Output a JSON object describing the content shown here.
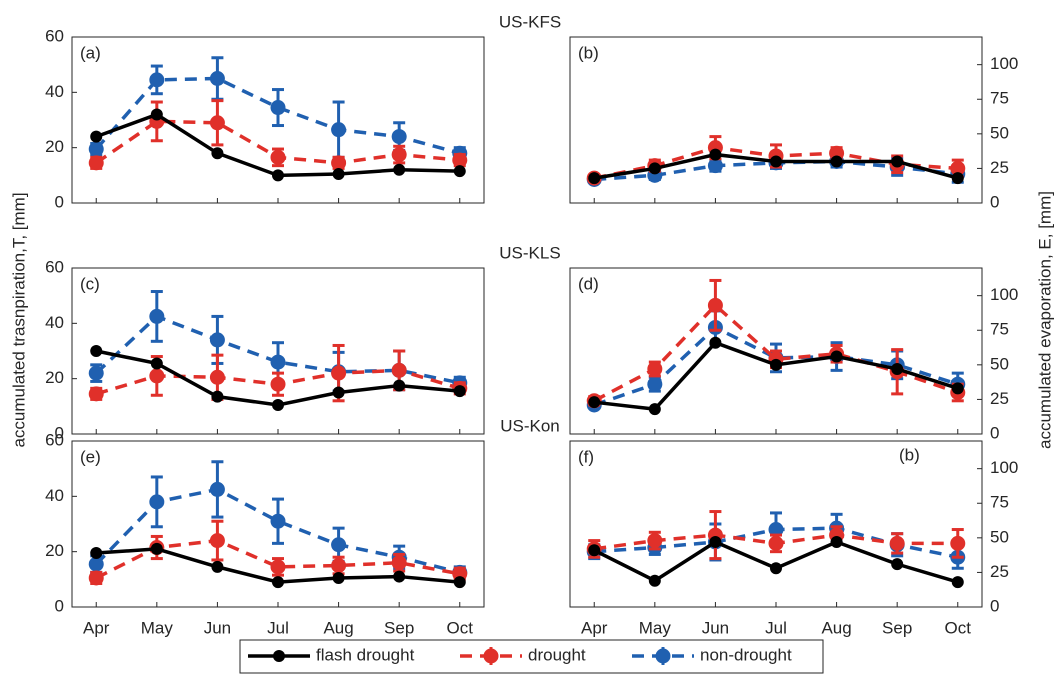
{
  "chart_data": [
    {
      "type": "line",
      "title": "US-KFS",
      "panel": "(a)",
      "axis_side": "left",
      "ylim": [
        0,
        60
      ],
      "yticks": [
        0,
        20,
        40,
        60
      ],
      "series": [
        {
          "name": "flash drought",
          "color": "#000000",
          "line_style": "solid",
          "values": [
            24,
            32,
            18,
            10,
            10.5,
            12,
            11.5
          ]
        },
        {
          "name": "drought",
          "color": "#e0302a",
          "line_style": "dashed",
          "values": [
            14.5,
            29.5,
            29,
            16.5,
            14.5,
            17.5,
            15.5
          ],
          "errors": [
            2,
            7,
            8,
            3,
            2,
            3,
            2
          ]
        },
        {
          "name": "non-drought",
          "color": "#2060b0",
          "line_style": "dashed",
          "values": [
            19.5,
            44.5,
            45,
            34.5,
            26.5,
            24,
            18
          ],
          "errors": [
            2,
            5,
            7.5,
            6.5,
            10,
            5,
            2
          ]
        }
      ]
    },
    {
      "type": "line",
      "panel": "(b)",
      "axis_side": "right",
      "ylim": [
        0,
        120
      ],
      "yticks": [
        0,
        25,
        50,
        75,
        100
      ],
      "series": [
        {
          "name": "flash drought",
          "color": "#000000",
          "line_style": "solid",
          "values": [
            18,
            25,
            35,
            30,
            30,
            30,
            18
          ]
        },
        {
          "name": "drought",
          "color": "#e0302a",
          "line_style": "dashed",
          "values": [
            18,
            27,
            40,
            34,
            36,
            28,
            25
          ],
          "errors": [
            2,
            4,
            8,
            8,
            4,
            6,
            6
          ]
        },
        {
          "name": "non-drought",
          "color": "#2060b0",
          "line_style": "dashed",
          "values": [
            17,
            20,
            27,
            29,
            30,
            26,
            21
          ],
          "errors": [
            2,
            3,
            4,
            4,
            4,
            6,
            6
          ]
        }
      ]
    },
    {
      "type": "line",
      "title": "US-KLS",
      "panel": "(c)",
      "axis_side": "left",
      "ylabel": "accumulated trasnpiration,T, [mm]",
      "ylim": [
        0,
        60
      ],
      "yticks": [
        0,
        20,
        40,
        60
      ],
      "series": [
        {
          "name": "flash drought",
          "color": "#000000",
          "line_style": "solid",
          "values": [
            30,
            25.5,
            13.5,
            10.5,
            15,
            17.5,
            15.5
          ]
        },
        {
          "name": "drought",
          "color": "#e0302a",
          "line_style": "dashed",
          "values": [
            14.5,
            21,
            20.5,
            18,
            22,
            23,
            16.5
          ],
          "errors": [
            2,
            7,
            8,
            4,
            10,
            7,
            2
          ]
        },
        {
          "name": "non-drought",
          "color": "#2060b0",
          "line_style": "dashed",
          "values": [
            22,
            42.5,
            34,
            26,
            22.5,
            23,
            18.5
          ],
          "errors": [
            3,
            9,
            8.5,
            7,
            7,
            7,
            2
          ]
        }
      ]
    },
    {
      "type": "line",
      "panel": "(d)",
      "axis_side": "right",
      "ylabel": "accumulated evaporation, E, [mm]",
      "ylim": [
        0,
        120
      ],
      "yticks": [
        0,
        25,
        50,
        75,
        100
      ],
      "series": [
        {
          "name": "flash drought",
          "color": "#000000",
          "line_style": "solid",
          "values": [
            23,
            18,
            66,
            50,
            56,
            47,
            33
          ]
        },
        {
          "name": "drought",
          "color": "#e0302a",
          "line_style": "dashed",
          "values": [
            24,
            47,
            93,
            54,
            58,
            45,
            30
          ],
          "errors": [
            3,
            5,
            18,
            6,
            6,
            16,
            6
          ]
        },
        {
          "name": "non-drought",
          "color": "#2060b0",
          "line_style": "dashed",
          "values": [
            21,
            36,
            77,
            55,
            56,
            50,
            36
          ],
          "errors": [
            2,
            5,
            12,
            10,
            10,
            10,
            8
          ]
        }
      ]
    },
    {
      "type": "line",
      "title": "US-Kon",
      "panel": "(e)",
      "axis_side": "left",
      "categories": [
        "Apr",
        "May",
        "Jun",
        "Jul",
        "Aug",
        "Sep",
        "Oct"
      ],
      "ylim": [
        0,
        60
      ],
      "yticks": [
        0,
        20,
        40,
        60
      ],
      "series": [
        {
          "name": "flash drought",
          "color": "#000000",
          "line_style": "solid",
          "values": [
            19.5,
            21,
            14.5,
            9,
            10.5,
            11,
            9
          ]
        },
        {
          "name": "drought",
          "color": "#e0302a",
          "line_style": "dashed",
          "values": [
            10.5,
            21.5,
            24,
            14.5,
            15,
            16,
            12
          ],
          "errors": [
            2,
            4,
            7,
            3,
            3,
            3,
            2
          ]
        },
        {
          "name": "non-drought",
          "color": "#2060b0",
          "line_style": "dashed",
          "values": [
            15.5,
            38,
            42.5,
            31,
            22.5,
            18,
            12.5
          ],
          "errors": [
            3,
            9,
            10,
            8,
            6,
            4,
            2
          ]
        }
      ]
    },
    {
      "type": "line",
      "panel": "(f)",
      "annotation": "(b)",
      "axis_side": "right",
      "categories": [
        "Apr",
        "May",
        "Jun",
        "Jul",
        "Aug",
        "Sep",
        "Oct"
      ],
      "ylim": [
        0,
        120
      ],
      "yticks": [
        0,
        25,
        50,
        75,
        100
      ],
      "series": [
        {
          "name": "flash drought",
          "color": "#000000",
          "line_style": "solid",
          "values": [
            41,
            19,
            47,
            28,
            47,
            31,
            18
          ]
        },
        {
          "name": "drought",
          "color": "#e0302a",
          "line_style": "dashed",
          "values": [
            42,
            48,
            52,
            46,
            52,
            46,
            46
          ],
          "errors": [
            6,
            6,
            17,
            6,
            6,
            7,
            10
          ]
        },
        {
          "name": "non-drought",
          "color": "#2060b0",
          "line_style": "dashed",
          "values": [
            40,
            43,
            47,
            56,
            57,
            45,
            36
          ],
          "errors": [
            5,
            5,
            13,
            12,
            10,
            8,
            8
          ]
        }
      ]
    }
  ]
}
